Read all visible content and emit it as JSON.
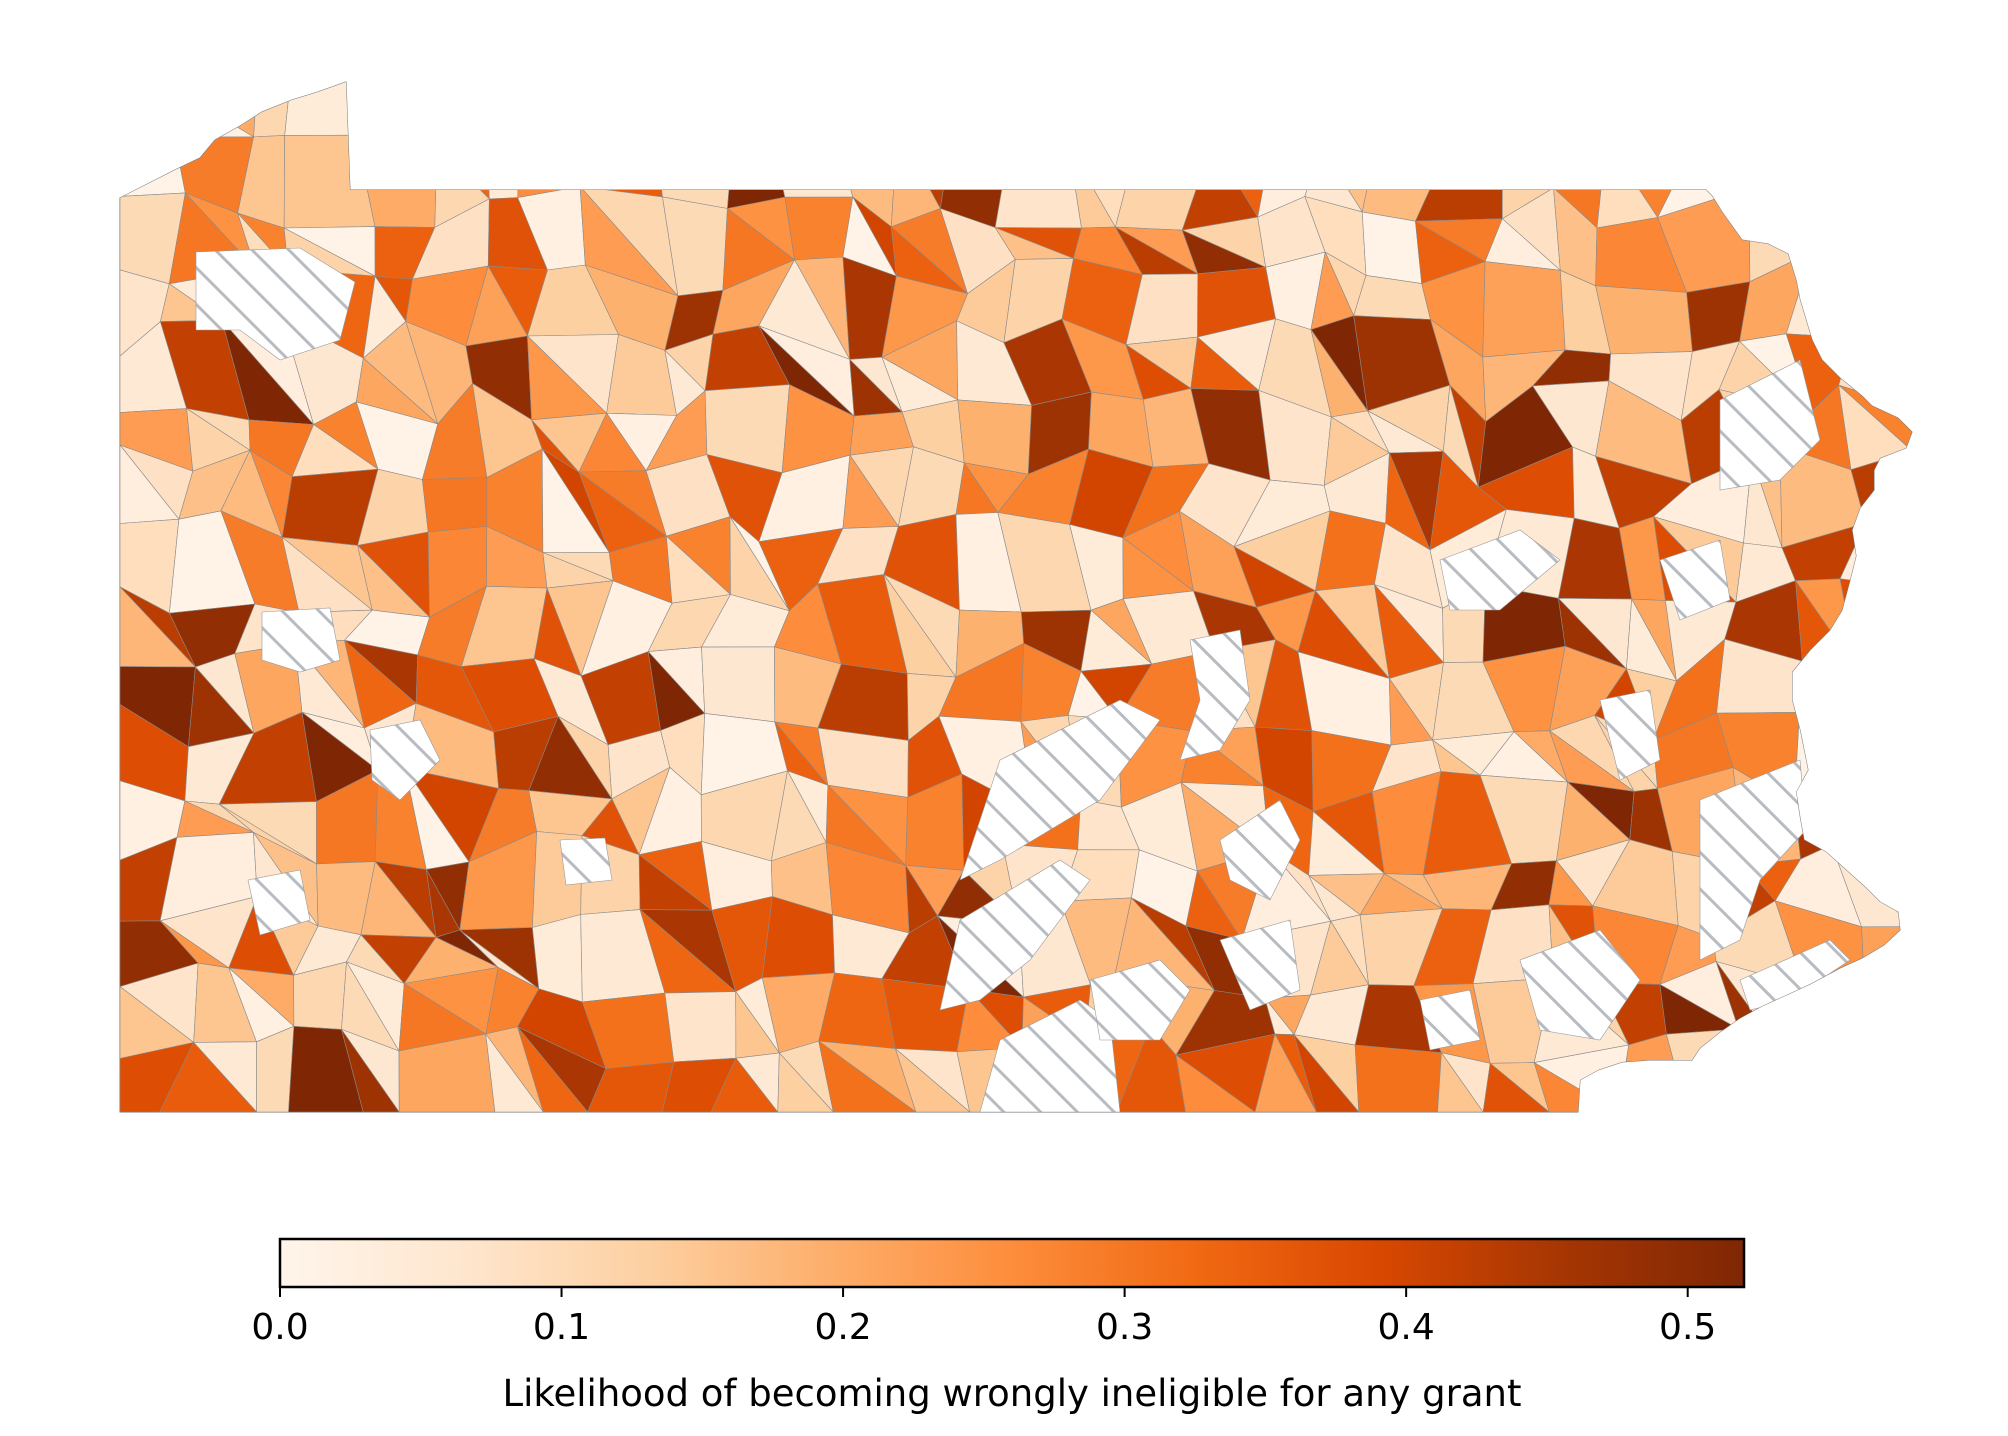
{
  "map": {
    "type": "choropleth",
    "region": "Pennsylvania",
    "units": "school districts",
    "no_data_fill": "hatched gray",
    "district_values": [
      0.04,
      0.18,
      0.12,
      0.25,
      0.35,
      0.42,
      0.08,
      0.15,
      0.05,
      0.49,
      0.3,
      0.22,
      0.1,
      0.03,
      0.37,
      0.2,
      0.45,
      0.07,
      0.28,
      0.13,
      0.52,
      0.16,
      0.02,
      0.33,
      0.24,
      0.09,
      0.4,
      0.19,
      0.06,
      0.27,
      0.11,
      0.36,
      0.14,
      0.01,
      0.31,
      0.47,
      0.17,
      0.23,
      0.04,
      0.38,
      0.12,
      0.29,
      0.07,
      0.21,
      0.43,
      0.1,
      0.26,
      0.05,
      0.34,
      0.15
    ]
  },
  "chart_data": {
    "type": "heatmap",
    "colorbar": {
      "label": "Likelihood of becoming wrongly ineligible for any grant",
      "vmin": 0.0,
      "vmax": 0.52,
      "ticks": [
        0.0,
        0.1,
        0.2,
        0.3,
        0.4,
        0.5
      ],
      "tick_labels": [
        "0.0",
        "0.1",
        "0.2",
        "0.3",
        "0.4",
        "0.5"
      ],
      "colormap": "Oranges",
      "colors": [
        "#fff5eb",
        "#fee6ce",
        "#fdd0a2",
        "#fdae6b",
        "#fd8d3c",
        "#f16913",
        "#d94801",
        "#a63603",
        "#7f2704"
      ]
    }
  }
}
